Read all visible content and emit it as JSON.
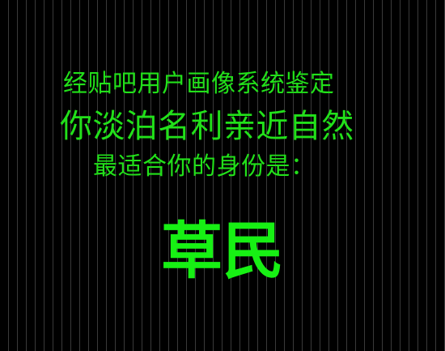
{
  "lines": [
    "经贴吧用户画像系统鉴定",
    "你淡泊名利亲近自然",
    "最适合你的身份是："
  ],
  "result": "草民",
  "colors": {
    "background": "#000000",
    "stripe": "#3a3a3a",
    "text": "#22e01a",
    "result": "#17f014"
  }
}
